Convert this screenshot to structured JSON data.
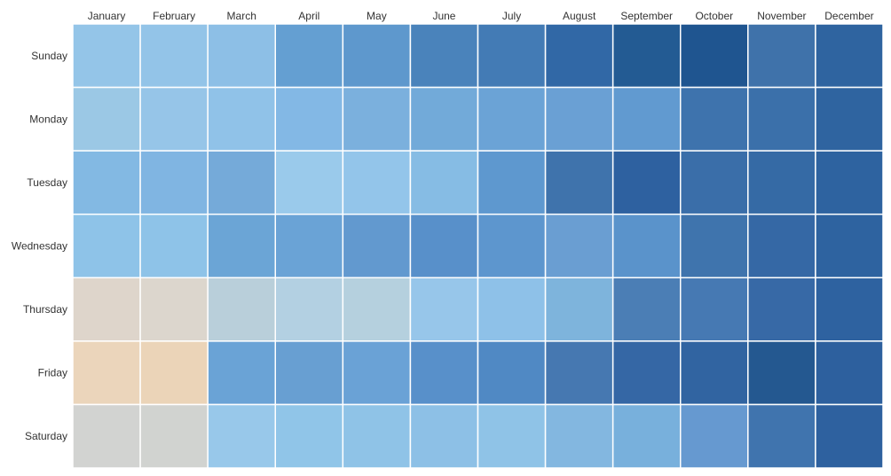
{
  "chart_data": {
    "type": "heatmap",
    "title": "",
    "xlabel": "",
    "ylabel": "",
    "columns": [
      "January",
      "February",
      "March",
      "April",
      "May",
      "June",
      "July",
      "August",
      "September",
      "October",
      "November",
      "December"
    ],
    "rows": [
      "Sunday",
      "Monday",
      "Tuesday",
      "Wednesday",
      "Thursday",
      "Friday",
      "Saturday"
    ],
    "cell_colors": [
      [
        "#94c5e8",
        "#93c4e8",
        "#8dbfe6",
        "#649fd2",
        "#5e98cd",
        "#4a83bb",
        "#437bb5",
        "#3168a6",
        "#235b93",
        "#1f5590",
        "#3f72aa",
        "#2f64a0"
      ],
      [
        "#9bc8e5",
        "#96c5e8",
        "#90c2e8",
        "#83b8e5",
        "#7bb0dd",
        "#72aad9",
        "#6ba3d6",
        "#6aa0d4",
        "#619ad0",
        "#3e73ad",
        "#3b70aa",
        "#2f64a0"
      ],
      [
        "#83b9e3",
        "#80b5e2",
        "#75aad9",
        "#9acaeb",
        "#93c5ea",
        "#86bce4",
        "#5e98cf",
        "#3f73ac",
        "#2e61a0",
        "#3a6ea9",
        "#356aa5",
        "#2e63a0"
      ],
      [
        "#8ec3e8",
        "#8ec3e8",
        "#6ba5d6",
        "#6aa3d6",
        "#6299cf",
        "#5890ca",
        "#5d96ce",
        "#6a9ed2",
        "#5a93cb",
        "#3f74ad",
        "#3568a5",
        "#2e63a0"
      ],
      [
        "#ded5cb",
        "#dcd6cd",
        "#b9cfda",
        "#b3d0e2",
        "#b5d0de",
        "#97c6ea",
        "#8ec1e8",
        "#7eb4dc",
        "#4b7eb5",
        "#4679b3",
        "#3769a6",
        "#2e62a0"
      ],
      [
        "#ebd5bb",
        "#ebd4b8",
        "#6aa3d6",
        "#689fd2",
        "#6aa2d6",
        "#5890ca",
        "#5089c4",
        "#4678b1",
        "#3567a5",
        "#3164a1",
        "#245890",
        "#2d609e"
      ],
      [
        "#d2d3d1",
        "#d1d3d0",
        "#98c8ea",
        "#90c5e8",
        "#8fc3e7",
        "#8dc0e6",
        "#8fc3e7",
        "#83b7e0",
        "#78b0dc",
        "#6699d0",
        "#4074ae",
        "#2e619f"
      ]
    ]
  }
}
